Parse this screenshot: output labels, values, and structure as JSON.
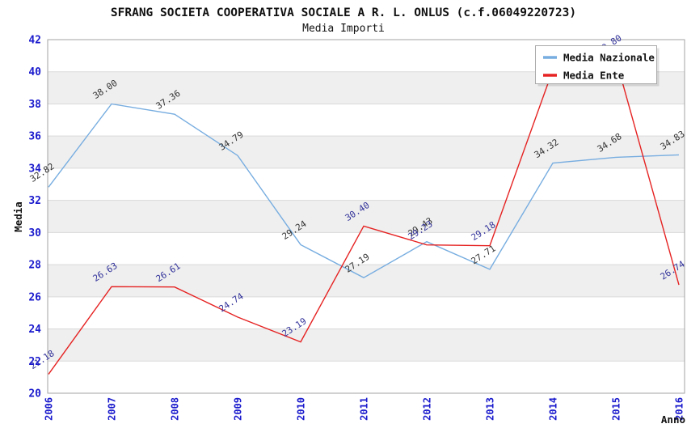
{
  "chart_data": {
    "type": "line",
    "title": "SFRANG SOCIETA COOPERATIVA SOCIALE A R. L. ONLUS (c.f.06049220723)",
    "subtitle": "Media Importi",
    "xlabel": "Anno",
    "ylabel": "Media",
    "ylim": [
      20,
      42
    ],
    "yticks": [
      20,
      22,
      24,
      26,
      28,
      30,
      32,
      34,
      36,
      38,
      40,
      42
    ],
    "categories": [
      "2006",
      "2007",
      "2008",
      "2009",
      "2010",
      "2011",
      "2012",
      "2013",
      "2014",
      "2015",
      "2016"
    ],
    "series": [
      {
        "name": "Media Nazionale",
        "color": "#77ade0",
        "label_color": "#333333",
        "values": [
          32.82,
          38.0,
          37.36,
          34.79,
          29.24,
          27.19,
          29.43,
          27.71,
          34.32,
          34.68,
          34.83
        ]
      },
      {
        "name": "Media Ente",
        "color": "#e62222",
        "label_color": "#32329b",
        "values": [
          21.18,
          26.63,
          26.61,
          24.74,
          23.19,
          30.4,
          29.23,
          29.18,
          40.12,
          40.8,
          26.74
        ]
      }
    ],
    "legend_position": "top-right",
    "grid": "horizontal-bands",
    "band_color": "#efefef",
    "gridline_color": "#d9d9d9",
    "plot_border_color": "#a3a3a3",
    "axis_tick_color": "#1a1acd",
    "title_color": "#111111"
  }
}
